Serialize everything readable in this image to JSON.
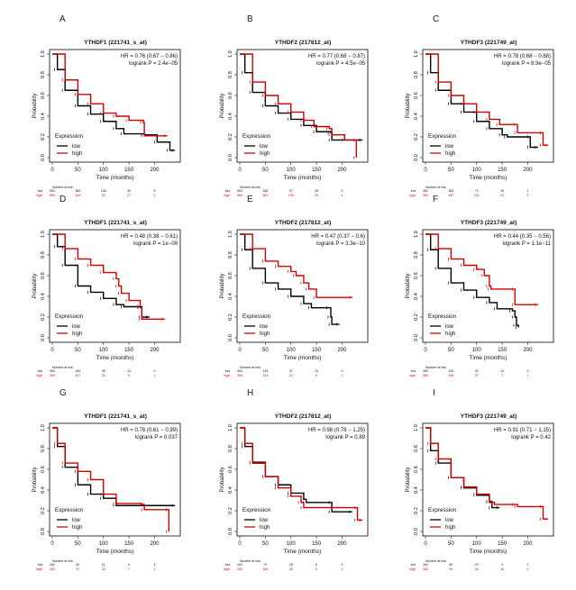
{
  "common": {
    "xlabel": "Time (months)",
    "ylabel": "Probability",
    "legend_title": "Expression",
    "legend_low": "low",
    "legend_high": "high",
    "risk_header": "Number at risk",
    "risk_low_label": "low",
    "risk_high_label": "high",
    "xlim": [
      0,
      245
    ],
    "ylim": [
      0,
      1
    ],
    "xticks": [
      "0",
      "50",
      "100",
      "150",
      "200"
    ],
    "yticks": [
      "0.0",
      "0.2",
      "0.4",
      "0.6",
      "0.8",
      "1.0"
    ],
    "colors": {
      "low": "#000000",
      "high": "#d40000"
    }
  },
  "chart_data": [
    {
      "type": "line",
      "letter": "A",
      "title": "YTHDF1 (221741_s_at)",
      "hr": "HR = 0.76 (0.67 − 0.86)",
      "logrank": "logrank P = 2.4e−05",
      "risk": {
        "low": [
          "962",
          "383",
          "106",
          "30",
          "5"
        ],
        "high": [
          "963",
          "444",
          "93",
          "27",
          "2"
        ]
      },
      "series": [
        {
          "name": "low",
          "points": [
            [
              0,
              1
            ],
            [
              10,
              0.85
            ],
            [
              25,
              0.65
            ],
            [
              50,
              0.5
            ],
            [
              75,
              0.42
            ],
            [
              100,
              0.35
            ],
            [
              125,
              0.28
            ],
            [
              140,
              0.23
            ],
            [
              180,
              0.22
            ],
            [
              205,
              0.15
            ],
            [
              230,
              0.07
            ],
            [
              240,
              0.07
            ]
          ]
        },
        {
          "name": "high",
          "points": [
            [
              0,
              1
            ],
            [
              25,
              0.75
            ],
            [
              50,
              0.61
            ],
            [
              75,
              0.52
            ],
            [
              100,
              0.43
            ],
            [
              125,
              0.4
            ],
            [
              150,
              0.36
            ],
            [
              178,
              0.34
            ],
            [
              180,
              0.21
            ],
            [
              225,
              0.21
            ]
          ]
        }
      ]
    },
    {
      "type": "line",
      "letter": "B",
      "title": "YTHDF2 (217812_at)",
      "hr": "HR = 0.77 (0.68 − 0.87)",
      "logrank": "logrank P = 4.5e−05",
      "risk": {
        "low": [
          "962",
          "348",
          "97",
          "28",
          "3"
        ],
        "high": [
          "963",
          "481",
          "106",
          "29",
          "4"
        ]
      },
      "series": [
        {
          "name": "low",
          "points": [
            [
              0,
              1
            ],
            [
              10,
              0.82
            ],
            [
              25,
              0.63
            ],
            [
              50,
              0.5
            ],
            [
              75,
              0.43
            ],
            [
              100,
              0.37
            ],
            [
              125,
              0.31
            ],
            [
              150,
              0.25
            ],
            [
              178,
              0.24
            ],
            [
              180,
              0.17
            ],
            [
              240,
              0.17
            ]
          ]
        },
        {
          "name": "high",
          "points": [
            [
              0,
              1
            ],
            [
              25,
              0.73
            ],
            [
              50,
              0.6
            ],
            [
              75,
              0.52
            ],
            [
              100,
              0.44
            ],
            [
              125,
              0.36
            ],
            [
              145,
              0.3
            ],
            [
              175,
              0.28
            ],
            [
              180,
              0.22
            ],
            [
              205,
              0.17
            ],
            [
              228,
              0.17
            ],
            [
              228,
              0
            ]
          ]
        }
      ]
    },
    {
      "type": "line",
      "letter": "C",
      "title": "YTHDF3 (221749_at)",
      "hr": "HR = 0.78 (0.68 − 0.88)",
      "logrank": "logrank P = 8.9e−05",
      "risk": {
        "low": [
          "962",
          "363",
          "72",
          "19",
          "2"
        ],
        "high": [
          "963",
          "467",
          "131",
          "42",
          "5"
        ]
      },
      "series": [
        {
          "name": "low",
          "points": [
            [
              0,
              1
            ],
            [
              10,
              0.82
            ],
            [
              25,
              0.65
            ],
            [
              50,
              0.52
            ],
            [
              75,
              0.44
            ],
            [
              100,
              0.35
            ],
            [
              125,
              0.28
            ],
            [
              150,
              0.22
            ],
            [
              160,
              0.2
            ],
            [
              205,
              0.2
            ],
            [
              205,
              0.1
            ],
            [
              220,
              0.1
            ]
          ]
        },
        {
          "name": "high",
          "points": [
            [
              0,
              1
            ],
            [
              25,
              0.73
            ],
            [
              50,
              0.6
            ],
            [
              75,
              0.52
            ],
            [
              100,
              0.44
            ],
            [
              125,
              0.37
            ],
            [
              145,
              0.32
            ],
            [
              178,
              0.32
            ],
            [
              180,
              0.24
            ],
            [
              230,
              0.24
            ],
            [
              230,
              0.12
            ],
            [
              240,
              0.12
            ]
          ]
        }
      ]
    },
    {
      "type": "line",
      "letter": "D",
      "title": "YTHDF1 (221741_s_at)",
      "hr": "HR = 0.48 (0.38 − 0.61)",
      "logrank": "logrank P = 1e−09",
      "risk": {
        "low": [
          "360",
          "140",
          "36",
          "13",
          "0"
        ],
        "high": [
          "359",
          "207",
          "33",
          "6",
          "1"
        ]
      },
      "series": [
        {
          "name": "low",
          "points": [
            [
              0,
              1
            ],
            [
              10,
              0.88
            ],
            [
              25,
              0.7
            ],
            [
              50,
              0.5
            ],
            [
              75,
              0.44
            ],
            [
              100,
              0.38
            ],
            [
              125,
              0.32
            ],
            [
              140,
              0.3
            ],
            [
              173,
              0.3
            ],
            [
              175,
              0.2
            ],
            [
              190,
              0.2
            ]
          ]
        },
        {
          "name": "high",
          "points": [
            [
              0,
              1
            ],
            [
              25,
              0.86
            ],
            [
              50,
              0.76
            ],
            [
              75,
              0.7
            ],
            [
              100,
              0.63
            ],
            [
              125,
              0.57
            ],
            [
              130,
              0.5
            ],
            [
              135,
              0.43
            ],
            [
              150,
              0.36
            ],
            [
              172,
              0.29
            ],
            [
              175,
              0.18
            ],
            [
              220,
              0.18
            ]
          ]
        }
      ]
    },
    {
      "type": "line",
      "letter": "E",
      "title": "YTHDF2 (217812_at)",
      "hr": "HR = 0.47 (0.37 − 0.6)",
      "logrank": "logrank P = 3.3e−10",
      "risk": {
        "low": [
          "360",
          "133",
          "37",
          "13",
          "0"
        ],
        "high": [
          "359",
          "214",
          "32",
          "6",
          "1"
        ]
      },
      "series": [
        {
          "name": "low",
          "points": [
            [
              0,
              1
            ],
            [
              10,
              0.85
            ],
            [
              25,
              0.67
            ],
            [
              50,
              0.53
            ],
            [
              75,
              0.47
            ],
            [
              100,
              0.4
            ],
            [
              125,
              0.33
            ],
            [
              140,
              0.29
            ],
            [
              175,
              0.29
            ],
            [
              178,
              0.2
            ],
            [
              180,
              0.13
            ],
            [
              195,
              0.13
            ]
          ]
        },
        {
          "name": "high",
          "points": [
            [
              0,
              1
            ],
            [
              25,
              0.86
            ],
            [
              50,
              0.74
            ],
            [
              75,
              0.69
            ],
            [
              100,
              0.64
            ],
            [
              110,
              0.6
            ],
            [
              125,
              0.53
            ],
            [
              135,
              0.47
            ],
            [
              150,
              0.39
            ],
            [
              220,
              0.39
            ]
          ]
        }
      ]
    },
    {
      "type": "line",
      "letter": "F",
      "title": "YTHDF3 (221749_at)",
      "hr": "HR = 0.44 (0.35 − 0.56)",
      "logrank": "logrank P = 1.1e−11",
      "risk": {
        "low": [
          "360",
          "139",
          "32",
          "12",
          "0"
        ],
        "high": [
          "359",
          "208",
          "37",
          "7",
          "1"
        ]
      },
      "series": [
        {
          "name": "low",
          "points": [
            [
              0,
              1
            ],
            [
              10,
              0.85
            ],
            [
              25,
              0.67
            ],
            [
              50,
              0.53
            ],
            [
              75,
              0.46
            ],
            [
              100,
              0.39
            ],
            [
              125,
              0.34
            ],
            [
              140,
              0.28
            ],
            [
              170,
              0.26
            ],
            [
              175,
              0.2
            ],
            [
              178,
              0.12
            ],
            [
              182,
              0.1
            ]
          ]
        },
        {
          "name": "high",
          "points": [
            [
              0,
              1
            ],
            [
              25,
              0.86
            ],
            [
              50,
              0.76
            ],
            [
              75,
              0.7
            ],
            [
              100,
              0.66
            ],
            [
              115,
              0.6
            ],
            [
              125,
              0.5
            ],
            [
              128,
              0.47
            ],
            [
              175,
              0.47
            ],
            [
              175,
              0.32
            ],
            [
              220,
              0.32
            ]
          ]
        }
      ]
    },
    {
      "type": "line",
      "letter": "G",
      "title": "YTHDF1 (221741_s_at)",
      "hr": "HR = 0.78 (0.61 − 0.99)",
      "logrank": "logrank P = 0.037",
      "risk": {
        "low": [
          "262",
          "82",
          "21",
          "6",
          "3"
        ],
        "high": [
          "262",
          "97",
          "33",
          "7",
          "1"
        ]
      },
      "series": [
        {
          "name": "low",
          "points": [
            [
              0,
              1
            ],
            [
              10,
              0.82
            ],
            [
              25,
              0.62
            ],
            [
              50,
              0.45
            ],
            [
              75,
              0.36
            ],
            [
              100,
              0.32
            ],
            [
              125,
              0.25
            ],
            [
              240,
              0.25
            ]
          ]
        },
        {
          "name": "high",
          "points": [
            [
              0,
              1
            ],
            [
              10,
              0.85
            ],
            [
              25,
              0.66
            ],
            [
              50,
              0.58
            ],
            [
              75,
              0.5
            ],
            [
              100,
              0.36
            ],
            [
              125,
              0.27
            ],
            [
              175,
              0.26
            ],
            [
              180,
              0.21
            ],
            [
              228,
              0.21
            ],
            [
              228,
              0
            ]
          ]
        }
      ]
    },
    {
      "type": "line",
      "letter": "H",
      "title": "YTHDF2 (217812_at)",
      "hr": "HR = 0.98 (0.78 − 1.25)",
      "logrank": "logrank P = 0.89",
      "risk": {
        "low": [
          "262",
          "79",
          "25",
          "6",
          "2"
        ],
        "high": [
          "262",
          "100",
          "28",
          "6",
          "2"
        ]
      },
      "series": [
        {
          "name": "low",
          "points": [
            [
              0,
              1
            ],
            [
              10,
              0.82
            ],
            [
              25,
              0.66
            ],
            [
              50,
              0.53
            ],
            [
              75,
              0.45
            ],
            [
              100,
              0.37
            ],
            [
              125,
              0.31
            ],
            [
              130,
              0.28
            ],
            [
              180,
              0.28
            ],
            [
              180,
              0.19
            ],
            [
              220,
              0.19
            ]
          ]
        },
        {
          "name": "high",
          "points": [
            [
              0,
              1
            ],
            [
              10,
              0.85
            ],
            [
              25,
              0.67
            ],
            [
              50,
              0.53
            ],
            [
              75,
              0.42
            ],
            [
              100,
              0.34
            ],
            [
              120,
              0.28
            ],
            [
              125,
              0.23
            ],
            [
              230,
              0.23
            ],
            [
              230,
              0.11
            ],
            [
              240,
              0.11
            ]
          ]
        }
      ]
    },
    {
      "type": "line",
      "letter": "I",
      "title": "YTHDF3 (221749_at)",
      "hr": "HR = 0.91 (0.71 − 1.15)",
      "logrank": "logrank P = 0.42",
      "risk": {
        "low": [
          "262",
          "80",
          "20",
          "0",
          "0"
        ],
        "high": [
          "262",
          "99",
          "34",
          "15",
          "4"
        ]
      },
      "series": [
        {
          "name": "low",
          "points": [
            [
              0,
              1
            ],
            [
              10,
              0.78
            ],
            [
              25,
              0.66
            ],
            [
              50,
              0.52
            ],
            [
              75,
              0.42
            ],
            [
              100,
              0.35
            ],
            [
              125,
              0.29
            ],
            [
              130,
              0.23
            ],
            [
              145,
              0.23
            ]
          ]
        },
        {
          "name": "high",
          "points": [
            [
              0,
              1
            ],
            [
              10,
              0.85
            ],
            [
              25,
              0.7
            ],
            [
              50,
              0.52
            ],
            [
              75,
              0.43
            ],
            [
              100,
              0.36
            ],
            [
              125,
              0.28
            ],
            [
              135,
              0.26
            ],
            [
              175,
              0.26
            ],
            [
              180,
              0.24
            ],
            [
              230,
              0.24
            ],
            [
              230,
              0.12
            ],
            [
              240,
              0.12
            ]
          ]
        }
      ]
    }
  ]
}
